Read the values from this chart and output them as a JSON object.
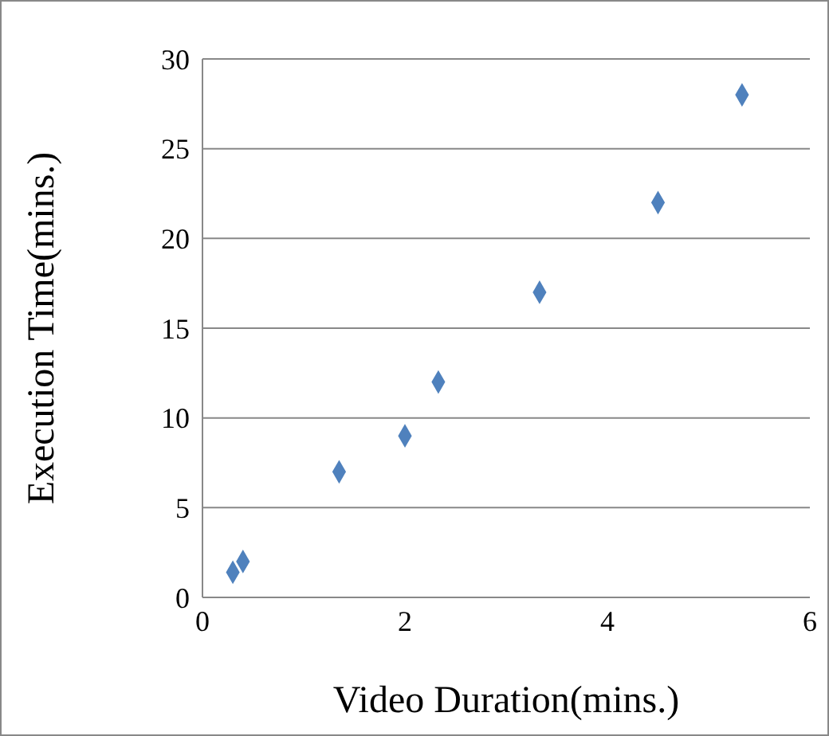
{
  "chart_data": {
    "type": "scatter",
    "xlabel": "Video Duration(mins.)",
    "ylabel": "Execution Time(mins.)",
    "series": [
      {
        "color": "#4f81bd",
        "x": [
          0.3,
          0.4,
          1.35,
          2,
          2.33,
          3.33,
          4.5,
          5.33
        ],
        "values": [
          1.4,
          2,
          7,
          9,
          12,
          17,
          22,
          28
        ]
      }
    ],
    "xlim": [
      0,
      6
    ],
    "xticks": [
      0,
      2,
      4,
      6
    ],
    "ylim": [
      0,
      30
    ],
    "yticks": [
      0,
      5,
      10,
      15,
      20,
      25,
      30
    ],
    "grid": "y",
    "marker": "diamond",
    "legend": false
  }
}
